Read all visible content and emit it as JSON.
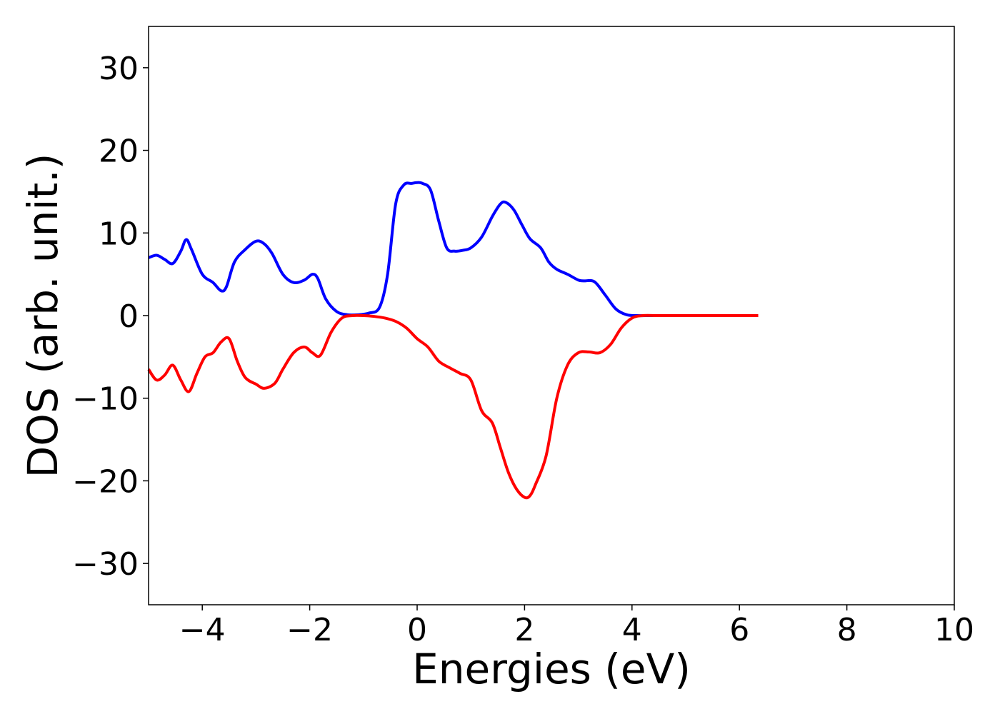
{
  "chart_data": {
    "type": "line",
    "title": "",
    "xlabel": "Energies (eV)",
    "ylabel": "DOS (arb. unit.)",
    "xlim": [
      -5,
      10
    ],
    "ylim": [
      -35,
      35
    ],
    "x_ticks": [
      -4,
      -2,
      0,
      2,
      4,
      6,
      8,
      10
    ],
    "x_tick_labels": [
      "−4",
      "−2",
      "0",
      "2",
      "4",
      "6",
      "8",
      "10"
    ],
    "y_ticks": [
      -30,
      -20,
      -10,
      0,
      10,
      20,
      30
    ],
    "y_tick_labels": [
      "−30",
      "−20",
      "−10",
      "0",
      "10",
      "20",
      "30"
    ],
    "grid": false,
    "series": [
      {
        "color": "#0000ff",
        "x": [
          -5.0,
          -4.85,
          -4.7,
          -4.55,
          -4.4,
          -4.3,
          -4.2,
          -4.0,
          -3.8,
          -3.65,
          -3.55,
          -3.4,
          -3.2,
          -3.0,
          -2.85,
          -2.7,
          -2.5,
          -2.3,
          -2.1,
          -1.95,
          -1.85,
          -1.7,
          -1.5,
          -1.3,
          -1.1,
          -0.9,
          -0.7,
          -0.55,
          -0.4,
          -0.25,
          -0.1,
          0.0,
          0.1,
          0.25,
          0.4,
          0.55,
          0.7,
          0.85,
          1.0,
          1.2,
          1.4,
          1.55,
          1.65,
          1.8,
          1.95,
          2.1,
          2.3,
          2.45,
          2.6,
          2.8,
          3.0,
          3.1,
          3.3,
          3.5,
          3.7,
          3.9,
          4.1,
          4.4,
          5.0,
          6.0,
          6.35
        ],
        "y": [
          7.0,
          7.3,
          6.8,
          6.3,
          7.8,
          9.2,
          8.0,
          5.0,
          4.0,
          3.0,
          3.5,
          6.5,
          8.0,
          9.0,
          8.7,
          7.5,
          5.0,
          4.0,
          4.3,
          5.0,
          4.5,
          2.0,
          0.5,
          0.1,
          0.1,
          0.3,
          1.0,
          5.0,
          13.5,
          15.8,
          16.0,
          16.1,
          16.0,
          15.2,
          11.5,
          8.2,
          7.8,
          7.9,
          8.2,
          9.5,
          12.0,
          13.5,
          13.7,
          12.8,
          11.0,
          9.3,
          8.2,
          6.5,
          5.6,
          5.0,
          4.3,
          4.2,
          4.1,
          2.5,
          0.8,
          0.1,
          0.0,
          0.0,
          0.0,
          0.0,
          0.0
        ]
      },
      {
        "color": "#ff0000",
        "x": [
          -5.0,
          -4.85,
          -4.7,
          -4.55,
          -4.4,
          -4.25,
          -4.1,
          -3.95,
          -3.8,
          -3.65,
          -3.5,
          -3.35,
          -3.2,
          -3.0,
          -2.85,
          -2.65,
          -2.5,
          -2.3,
          -2.1,
          -1.95,
          -1.8,
          -1.6,
          -1.4,
          -1.2,
          -1.0,
          -0.8,
          -0.6,
          -0.4,
          -0.2,
          0.0,
          0.2,
          0.4,
          0.6,
          0.8,
          1.0,
          1.2,
          1.4,
          1.55,
          1.7,
          1.85,
          2.0,
          2.1,
          2.2,
          2.4,
          2.6,
          2.8,
          3.0,
          3.2,
          3.4,
          3.6,
          3.8,
          4.0,
          4.2,
          4.5,
          5.0,
          6.0,
          6.35
        ],
        "y": [
          -6.5,
          -7.8,
          -7.2,
          -6.0,
          -7.8,
          -9.2,
          -7.0,
          -5.0,
          -4.5,
          -3.2,
          -2.8,
          -5.5,
          -7.5,
          -8.3,
          -8.8,
          -8.2,
          -6.5,
          -4.5,
          -3.8,
          -4.5,
          -4.8,
          -2.0,
          -0.3,
          0.0,
          0.0,
          -0.1,
          -0.3,
          -0.7,
          -1.5,
          -2.8,
          -3.8,
          -5.5,
          -6.3,
          -7.0,
          -7.8,
          -11.5,
          -13.0,
          -16.0,
          -19.0,
          -21.0,
          -22.0,
          -21.8,
          -20.5,
          -17.0,
          -10.0,
          -6.0,
          -4.5,
          -4.4,
          -4.5,
          -3.5,
          -1.5,
          -0.3,
          0.0,
          0.0,
          0.0,
          0.0,
          0.0
        ]
      }
    ]
  }
}
